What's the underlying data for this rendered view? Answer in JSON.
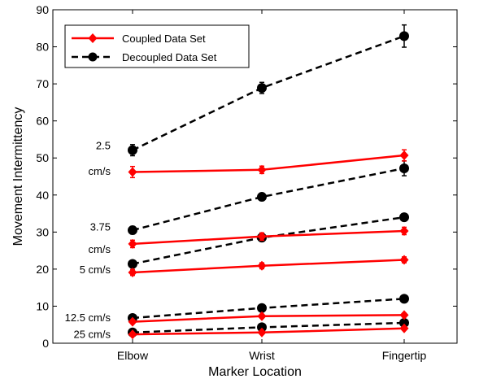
{
  "chart_data": {
    "type": "line",
    "title": "",
    "xlabel": "Marker Location",
    "ylabel": "Movement Intermittency",
    "categories": [
      "Elbow",
      "Wrist",
      "Fingertip"
    ],
    "ylim": [
      0,
      90
    ],
    "yticks": [
      0,
      10,
      20,
      30,
      40,
      50,
      60,
      70,
      80,
      90
    ],
    "grid": false,
    "legend_position": "top-left",
    "legend": [
      {
        "name": "Coupled Data Set",
        "color": "#ff0000",
        "dash": "solid",
        "marker": "diamond"
      },
      {
        "name": "Decoupled Data Set",
        "color": "#000000",
        "dash": "dashed",
        "marker": "circle"
      }
    ],
    "speed_labels": [
      {
        "lines": [
          "2.5",
          "cm/s"
        ],
        "anchor_y": [
          53.5,
          46.5
        ]
      },
      {
        "lines": [
          "3.75",
          "cm/s"
        ],
        "anchor_y": [
          31.5,
          25.5
        ]
      },
      {
        "lines": [
          "5 cm/s"
        ],
        "anchor_y": [
          20.0
        ]
      },
      {
        "lines": [
          "12.5 cm/s"
        ],
        "anchor_y": [
          7.0
        ]
      },
      {
        "lines": [
          "25 cm/s"
        ],
        "anchor_y": [
          2.5
        ]
      }
    ],
    "series": [
      {
        "set": "coupled",
        "speed": "2.5 cm/s",
        "values": [
          46.2,
          46.8,
          50.7
        ],
        "errors": [
          1.5,
          1.0,
          1.5
        ]
      },
      {
        "set": "decoupled",
        "speed": "2.5 cm/s",
        "values": [
          52.1,
          68.9,
          82.9
        ],
        "errors": [
          1.5,
          1.5,
          3.0
        ]
      },
      {
        "set": "coupled",
        "speed": "3.75 cm/s",
        "values": [
          26.8,
          28.8,
          30.3
        ],
        "errors": [
          1.0,
          1.0,
          1.0
        ]
      },
      {
        "set": "decoupled",
        "speed": "3.75 cm/s",
        "values": [
          30.5,
          39.5,
          47.2
        ],
        "errors": [
          1.0,
          1.0,
          2.0
        ]
      },
      {
        "set": "coupled",
        "speed": "5 cm/s",
        "values": [
          19.1,
          20.9,
          22.5
        ],
        "errors": [
          0.8,
          0.8,
          0.8
        ]
      },
      {
        "set": "decoupled",
        "speed": "5 cm/s",
        "values": [
          21.4,
          28.5,
          34.0
        ],
        "errors": [
          0.8,
          0.8,
          0.8
        ]
      },
      {
        "set": "coupled",
        "speed": "12.5 cm/s",
        "values": [
          5.8,
          7.3,
          7.6
        ],
        "errors": [
          0.5,
          0.5,
          0.5
        ]
      },
      {
        "set": "decoupled",
        "speed": "12.5 cm/s",
        "values": [
          6.8,
          9.5,
          12.0
        ],
        "errors": [
          0.5,
          0.5,
          0.5
        ]
      },
      {
        "set": "coupled",
        "speed": "25 cm/s",
        "values": [
          2.4,
          2.9,
          4.0
        ],
        "errors": [
          0.3,
          0.3,
          0.3
        ]
      },
      {
        "set": "decoupled",
        "speed": "25 cm/s",
        "values": [
          2.9,
          4.3,
          5.5
        ],
        "errors": [
          0.3,
          0.3,
          0.3
        ]
      }
    ]
  }
}
